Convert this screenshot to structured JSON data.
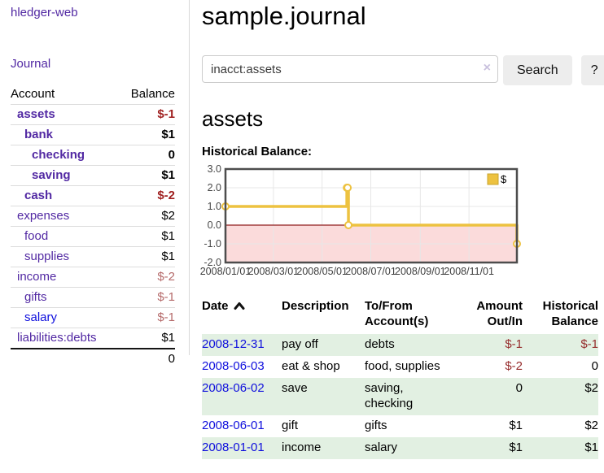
{
  "app": {
    "brand": "hledger-web"
  },
  "colors": {
    "link_purple": "#5229a3",
    "link_blue": "#0f0fdd",
    "negative_strong": "#9f1f1f",
    "negative_soft": "#b56a6a",
    "table_negative": "#962c2c",
    "row_stripe_green": "#e2f0e2",
    "series_yellow": "#edc240",
    "zero_line_red": "#8f1f1f",
    "below_zero_pink": "#fbdbdb",
    "grid_gray": "#e7e7e7",
    "chart_border": "#4d4d4d"
  },
  "sidebar": {
    "journal_link": "Journal",
    "accounts_table": {
      "headers": [
        "Account",
        "Balance"
      ],
      "rows": [
        {
          "name": "assets",
          "indent": 1,
          "bold": true,
          "name_color": "purple",
          "balance": "$-1",
          "balance_style": "neg-strong",
          "balance_bold": true
        },
        {
          "name": "bank",
          "indent": 2,
          "bold": true,
          "name_color": "purple",
          "balance": "$1",
          "balance_style": "plain",
          "balance_bold": true
        },
        {
          "name": "checking",
          "indent": 3,
          "bold": true,
          "name_color": "purple",
          "balance": "0",
          "balance_style": "plain",
          "balance_bold": true
        },
        {
          "name": "saving",
          "indent": 3,
          "bold": true,
          "name_color": "purple",
          "balance": "$1",
          "balance_style": "plain",
          "balance_bold": true
        },
        {
          "name": "cash",
          "indent": 2,
          "bold": true,
          "name_color": "purple",
          "balance": "$-2",
          "balance_style": "neg-strong",
          "balance_bold": true
        },
        {
          "name": "expenses",
          "indent": 1,
          "bold": false,
          "name_color": "purple",
          "balance": "$2",
          "balance_style": "plain",
          "balance_bold": false
        },
        {
          "name": "food",
          "indent": 2,
          "bold": false,
          "name_color": "purple",
          "balance": "$1",
          "balance_style": "plain",
          "balance_bold": false
        },
        {
          "name": "supplies",
          "indent": 2,
          "bold": false,
          "name_color": "purple",
          "balance": "$1",
          "balance_style": "plain",
          "balance_bold": false
        },
        {
          "name": "income",
          "indent": 1,
          "bold": false,
          "name_color": "purple",
          "balance": "$-2",
          "balance_style": "neg-soft",
          "balance_bold": false
        },
        {
          "name": "gifts",
          "indent": 2,
          "bold": false,
          "name_color": "purple",
          "balance": "$-1",
          "balance_style": "neg-soft",
          "balance_bold": false
        },
        {
          "name": "salary",
          "indent": 2,
          "bold": false,
          "name_color": "blue",
          "balance": "$-1",
          "balance_style": "neg-soft",
          "balance_bold": false
        },
        {
          "name": "liabilities:debts",
          "indent": 1,
          "bold": false,
          "name_color": "purple",
          "balance": "$1",
          "balance_style": "plain",
          "balance_bold": false
        }
      ],
      "total": "0"
    }
  },
  "main": {
    "title": "sample.journal",
    "search": {
      "value": "inacct:assets",
      "clear_icon": "×",
      "search_button": "Search",
      "help_button": "?"
    },
    "account_heading": "assets",
    "chart_label": "Historical Balance:"
  },
  "chart_data": {
    "type": "line",
    "step": true,
    "title": "Historical Balance",
    "series": [
      {
        "name": "$",
        "color": "#edc240",
        "points": [
          {
            "date": "2008/01/01",
            "day": 0,
            "value": 1
          },
          {
            "date": "2008/06/01",
            "day": 152,
            "value": 2
          },
          {
            "date": "2008/06/02",
            "day": 153,
            "value": 2
          },
          {
            "date": "2008/06/03",
            "day": 154,
            "value": 0
          },
          {
            "date": "2008/12/31",
            "day": 365,
            "value": -1
          }
        ]
      }
    ],
    "x_ticks": [
      {
        "label": "2008/01/01",
        "day": 0
      },
      {
        "label": "2008/03/01",
        "day": 60
      },
      {
        "label": "2008/05/01",
        "day": 121
      },
      {
        "label": "2008/07/01",
        "day": 182
      },
      {
        "label": "2008/09/01",
        "day": 244
      },
      {
        "label": "2008/11/01",
        "day": 305
      }
    ],
    "x_range_days": [
      0,
      365
    ],
    "y_ticks": [
      "3.0",
      "2.0",
      "1.0",
      "0.0",
      "-1.0",
      "-2.0"
    ],
    "ylim": [
      -2,
      3
    ],
    "legend": {
      "label": "$",
      "position": "top-right"
    },
    "grid": true,
    "annotations": "area below zero shaded pink with dark red zero line"
  },
  "register_table": {
    "headers": [
      {
        "label": "Date",
        "align": "left",
        "sorted": "asc"
      },
      {
        "label": "Description",
        "align": "left"
      },
      {
        "label": "To/From Account(s)",
        "align": "left"
      },
      {
        "label": "Amount Out/In",
        "align": "right"
      },
      {
        "label": "Historical Balance",
        "align": "right"
      }
    ],
    "rows": [
      {
        "date": "2008-12-31",
        "description": "pay off",
        "accounts": "debts",
        "amount": "$-1",
        "balance": "$-1"
      },
      {
        "date": "2008-06-03",
        "description": "eat & shop",
        "accounts": "food, supplies",
        "amount": "$-2",
        "balance": "0"
      },
      {
        "date": "2008-06-02",
        "description": "save",
        "accounts": "saving, checking",
        "amount": "0",
        "balance": "$2"
      },
      {
        "date": "2008-06-01",
        "description": "gift",
        "accounts": "gifts",
        "amount": "$1",
        "balance": "$2"
      },
      {
        "date": "2008-01-01",
        "description": "income",
        "accounts": "salary",
        "amount": "$1",
        "balance": "$1"
      }
    ]
  }
}
